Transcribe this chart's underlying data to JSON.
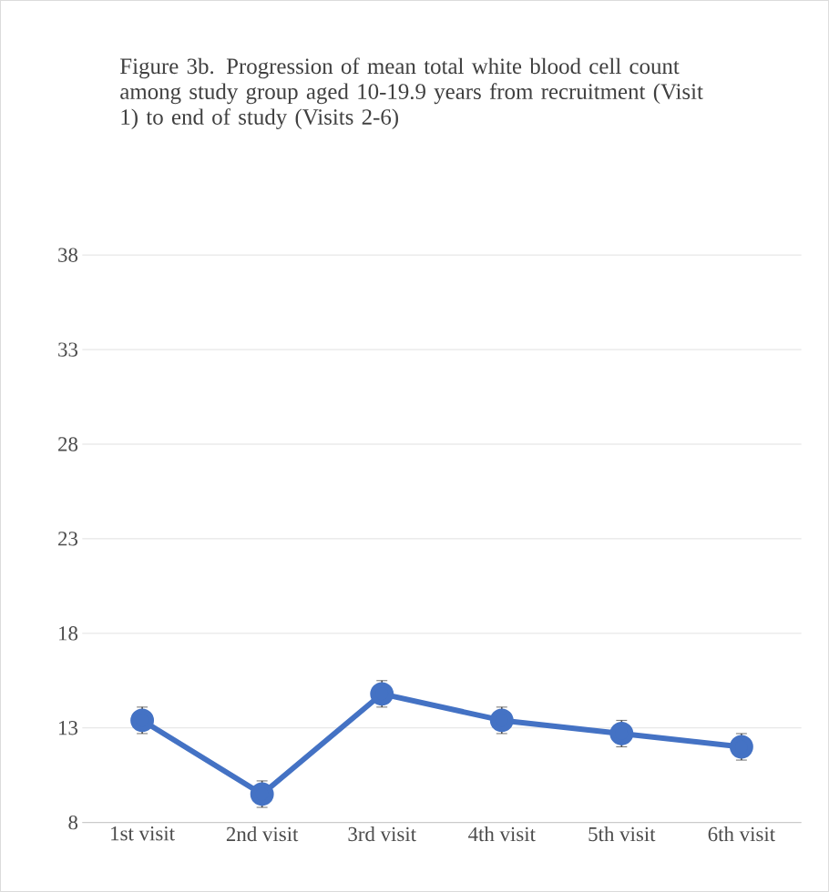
{
  "chart_data": {
    "type": "line",
    "title": "Figure 3b. Progression of mean total white blood cell count among study group aged 10-19.9 years from recruitment (Visit 1) to end of study (Visits 2-6)",
    "categories": [
      "1st visit",
      "2nd visit",
      "3rd visit",
      "4th visit",
      "5th visit",
      "6th visit"
    ],
    "series": [
      {
        "color": "#4472c4",
        "values": [
          13.4,
          9.5,
          14.8,
          13.4,
          12.7,
          12.0
        ],
        "errors": [
          0.7,
          0.7,
          0.7,
          0.7,
          0.7,
          0.7
        ]
      }
    ],
    "ylim": [
      8,
      38
    ],
    "yticks": [
      8,
      13,
      18,
      23,
      28,
      33,
      38
    ],
    "grid": "y",
    "marker": "circle",
    "line_style": "solid"
  }
}
